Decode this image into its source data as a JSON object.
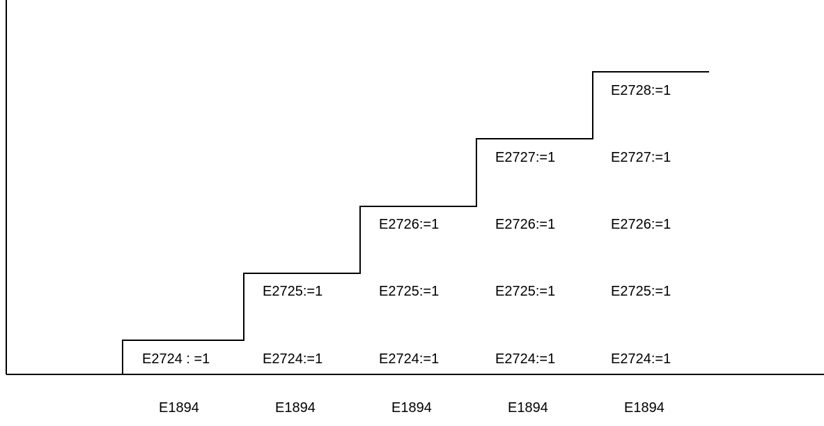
{
  "columns": [
    {
      "x_label": "E1894",
      "cells": [
        "E2724 : =1"
      ]
    },
    {
      "x_label": "E1894",
      "cells": [
        "E2724:=1",
        "E2725:=1"
      ]
    },
    {
      "x_label": "E1894",
      "cells": [
        "E2724:=1",
        "E2725:=1",
        "E2726:=1"
      ]
    },
    {
      "x_label": "E1894",
      "cells": [
        "E2724:=1",
        "E2725:=1",
        "E2726:=1",
        "E2727:=1"
      ]
    },
    {
      "x_label": "E1894",
      "cells": [
        "E2724:=1",
        "E2725:=1",
        "E2726:=1",
        "E2727:=1",
        "E2728:=1"
      ]
    }
  ],
  "colors": {
    "line": "#000000",
    "text": "#000000",
    "background": "#ffffff"
  }
}
